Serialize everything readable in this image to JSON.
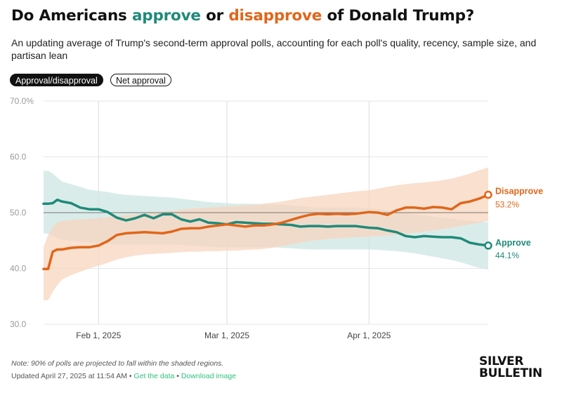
{
  "header": {
    "title_part1": "Do Americans ",
    "title_approve": "approve",
    "title_part2": " or ",
    "title_disapprove": "disapprove",
    "title_part3": " of Donald Trump?",
    "subtitle": "An updating average of Trump's second-term approval polls, accounting for each poll's quality, recency, sample size, and partisan lean"
  },
  "toggles": {
    "active_label": "Approval/disapproval",
    "inactive_label": "Net approval"
  },
  "footer": {
    "note": "Note: 90% of polls are projected to fall within the shaded regions.",
    "updated": "Updated April 27, 2025 at 11:54 AM",
    "separator": " • ",
    "get_data_link": "Get the data",
    "download_link": "Download image",
    "logo_line1": "SILVER",
    "logo_line2": "BULLETIN"
  },
  "colors": {
    "approve": "#1f8a7a",
    "disapprove": "#e0661b",
    "approve_band": "#cde6e1",
    "disapprove_band": "#f7d5bf",
    "grid": "#e6e6e6"
  },
  "chart_data": {
    "type": "line",
    "title": "Do Americans approve or disapprove of Donald Trump?",
    "x_axis": {
      "start": "2025-01-20",
      "end": "2025-04-27",
      "ticks": [
        "Feb 1, 2025",
        "Mar 1, 2025",
        "Apr 1, 2025"
      ],
      "tick_dates": [
        "2025-02-01",
        "2025-03-01",
        "2025-04-01"
      ]
    },
    "y_axis": {
      "ylim": [
        30,
        70
      ],
      "ticks": [
        30,
        40,
        50,
        60,
        70
      ],
      "tick_labels": [
        "30.0",
        "40.0",
        "50.0",
        "60.0",
        "70.0%"
      ],
      "reference_line": 50
    },
    "grid": true,
    "legend_placement": "end-of-line labels",
    "series": [
      {
        "name": "Approve",
        "end_label": "44.1%",
        "x": [
          "2025-01-20",
          "2025-01-21",
          "2025-01-22",
          "2025-01-23",
          "2025-01-24",
          "2025-01-26",
          "2025-01-28",
          "2025-01-30",
          "2025-02-01",
          "2025-02-03",
          "2025-02-05",
          "2025-02-07",
          "2025-02-09",
          "2025-02-11",
          "2025-02-13",
          "2025-02-15",
          "2025-02-17",
          "2025-02-19",
          "2025-02-21",
          "2025-02-23",
          "2025-02-25",
          "2025-02-27",
          "2025-03-01",
          "2025-03-03",
          "2025-03-05",
          "2025-03-07",
          "2025-03-09",
          "2025-03-11",
          "2025-03-13",
          "2025-03-15",
          "2025-03-17",
          "2025-03-19",
          "2025-03-21",
          "2025-03-23",
          "2025-03-25",
          "2025-03-27",
          "2025-03-29",
          "2025-04-01",
          "2025-04-03",
          "2025-04-05",
          "2025-04-07",
          "2025-04-09",
          "2025-04-11",
          "2025-04-13",
          "2025-04-15",
          "2025-04-17",
          "2025-04-19",
          "2025-04-21",
          "2025-04-23",
          "2025-04-25",
          "2025-04-27"
        ],
        "y": [
          51.6,
          51.6,
          51.7,
          52.3,
          52.0,
          51.7,
          50.9,
          50.6,
          50.6,
          50.1,
          49.1,
          48.6,
          49.0,
          49.6,
          49.0,
          49.7,
          49.7,
          48.8,
          48.4,
          48.8,
          48.2,
          48.1,
          47.9,
          48.3,
          48.2,
          48.1,
          48.0,
          48.0,
          47.9,
          47.8,
          47.5,
          47.6,
          47.6,
          47.5,
          47.6,
          47.6,
          47.6,
          47.3,
          47.2,
          46.8,
          46.5,
          45.8,
          45.6,
          45.8,
          45.7,
          45.6,
          45.6,
          45.4,
          44.6,
          44.3,
          44.1
        ]
      },
      {
        "name": "Disapprove",
        "end_label": "53.2%",
        "x": [
          "2025-01-20",
          "2025-01-21",
          "2025-01-22",
          "2025-01-23",
          "2025-01-24",
          "2025-01-26",
          "2025-01-28",
          "2025-01-30",
          "2025-02-01",
          "2025-02-03",
          "2025-02-05",
          "2025-02-07",
          "2025-02-09",
          "2025-02-11",
          "2025-02-13",
          "2025-02-15",
          "2025-02-17",
          "2025-02-19",
          "2025-02-21",
          "2025-02-23",
          "2025-02-25",
          "2025-02-27",
          "2025-03-01",
          "2025-03-03",
          "2025-03-05",
          "2025-03-07",
          "2025-03-09",
          "2025-03-11",
          "2025-03-13",
          "2025-03-15",
          "2025-03-17",
          "2025-03-19",
          "2025-03-21",
          "2025-03-23",
          "2025-03-25",
          "2025-03-27",
          "2025-03-29",
          "2025-04-01",
          "2025-04-03",
          "2025-04-05",
          "2025-04-07",
          "2025-04-09",
          "2025-04-11",
          "2025-04-13",
          "2025-04-15",
          "2025-04-17",
          "2025-04-19",
          "2025-04-21",
          "2025-04-23",
          "2025-04-25",
          "2025-04-27"
        ],
        "y": [
          39.9,
          39.9,
          43.0,
          43.4,
          43.4,
          43.7,
          43.8,
          43.8,
          44.1,
          44.9,
          46.0,
          46.3,
          46.4,
          46.5,
          46.4,
          46.3,
          46.6,
          47.1,
          47.2,
          47.2,
          47.5,
          47.7,
          47.9,
          47.7,
          47.5,
          47.7,
          47.7,
          47.9,
          48.2,
          48.7,
          49.2,
          49.6,
          49.8,
          49.7,
          49.8,
          49.7,
          49.8,
          50.1,
          50.0,
          49.6,
          50.4,
          50.9,
          50.9,
          50.7,
          51.0,
          50.9,
          50.6,
          51.7,
          52.0,
          52.5,
          53.2
        ]
      }
    ],
    "bands": {
      "note": "90% of polls are projected to fall within the shaded regions.",
      "approve_upper": [
        57.5,
        57.5,
        57.0,
        56.3,
        55.6,
        55.1,
        54.6,
        54.1,
        53.9,
        53.7,
        53.4,
        53.2,
        53.1,
        53.0,
        52.9,
        52.8,
        52.7,
        52.5,
        52.3,
        52.1,
        51.9,
        51.8,
        51.7,
        51.6,
        51.6,
        51.6,
        51.5,
        51.5,
        51.4,
        51.3,
        51.2,
        51.0,
        50.9,
        50.9,
        50.9,
        50.9,
        50.9,
        50.8,
        50.6,
        50.4,
        50.2,
        49.9,
        49.7,
        49.5,
        49.3,
        49.1,
        48.9,
        48.7,
        48.5,
        48.4,
        48.3
      ],
      "approve_lower": [
        46.3,
        46.2,
        45.9,
        45.5,
        45.2,
        45.0,
        44.8,
        44.6,
        44.5,
        44.4,
        44.3,
        44.3,
        44.3,
        44.3,
        44.3,
        44.3,
        44.3,
        44.2,
        44.1,
        44.0,
        43.9,
        43.8,
        43.8,
        43.8,
        43.8,
        43.8,
        43.8,
        43.8,
        43.7,
        43.6,
        43.5,
        43.4,
        43.4,
        43.4,
        43.4,
        43.4,
        43.4,
        43.4,
        43.3,
        43.2,
        43.1,
        42.9,
        42.7,
        42.4,
        42.1,
        41.8,
        41.5,
        41.1,
        40.6,
        40.1,
        39.8
      ],
      "disapprove_upper": [
        43.8,
        46.0,
        47.5,
        48.2,
        48.5,
        48.7,
        48.8,
        48.9,
        49.0,
        49.2,
        49.4,
        49.6,
        49.7,
        49.9,
        50.0,
        50.2,
        50.3,
        50.5,
        50.7,
        50.8,
        50.9,
        51.0,
        51.1,
        51.2,
        51.3,
        51.4,
        51.6,
        51.8,
        52.0,
        52.3,
        52.6,
        52.8,
        53.0,
        53.2,
        53.4,
        53.6,
        53.8,
        54.0,
        54.3,
        54.6,
        54.9,
        55.1,
        55.3,
        55.4,
        55.6,
        55.8,
        56.1,
        56.5,
        57.0,
        57.6,
        58.1
      ],
      "disapprove_lower": [
        34.3,
        34.3,
        35.8,
        37.0,
        38.0,
        38.8,
        39.4,
        40.0,
        40.5,
        41.0,
        41.6,
        42.0,
        42.3,
        42.5,
        42.6,
        42.7,
        42.8,
        42.9,
        43.0,
        43.0,
        43.1,
        43.1,
        43.2,
        43.2,
        43.3,
        43.4,
        43.5,
        43.7,
        44.0,
        44.3,
        44.6,
        44.9,
        45.1,
        45.3,
        45.4,
        45.5,
        45.6,
        45.7,
        45.8,
        45.9,
        46.0,
        46.2,
        46.4,
        46.6,
        46.8,
        47.0,
        47.3,
        47.6,
        47.9,
        48.2,
        48.5
      ]
    }
  }
}
